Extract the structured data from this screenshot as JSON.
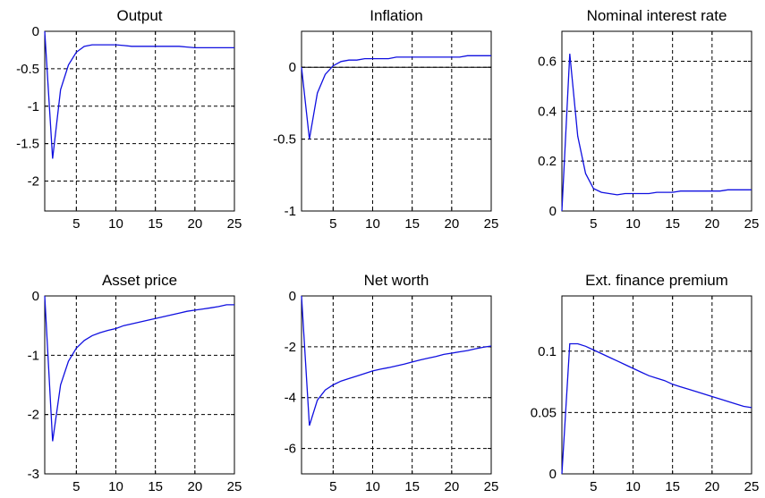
{
  "colors": {
    "line": "#1010e0",
    "axis": "#000000",
    "grid": "#000000",
    "background": "#ffffff"
  },
  "chart_data": [
    {
      "type": "line",
      "title": "Output",
      "grid": true,
      "xlim": [
        1,
        25
      ],
      "ylim": [
        -2.4,
        0
      ],
      "x_ticks": [
        5,
        10,
        15,
        20,
        25
      ],
      "x_tick_labels": [
        "5",
        "10",
        "15",
        "20",
        "25"
      ],
      "y_ticks": [
        -2,
        -1.5,
        -1,
        -0.5,
        0
      ],
      "y_tick_labels": [
        "-2",
        "-1.5",
        "-1",
        "-0.5",
        "0"
      ],
      "hline": null,
      "series": [
        {
          "x": [
            1,
            2,
            3,
            4,
            5,
            6,
            7,
            8,
            9,
            10,
            11,
            12,
            13,
            14,
            15,
            16,
            17,
            18,
            19,
            20,
            21,
            22,
            23,
            24,
            25
          ],
          "values": [
            0,
            -1.7,
            -0.78,
            -0.45,
            -0.28,
            -0.2,
            -0.18,
            -0.18,
            -0.18,
            -0.18,
            -0.19,
            -0.2,
            -0.2,
            -0.2,
            -0.2,
            -0.2,
            -0.2,
            -0.2,
            -0.21,
            -0.22,
            -0.22,
            -0.22,
            -0.22,
            -0.22,
            -0.22
          ]
        }
      ]
    },
    {
      "type": "line",
      "title": "Inflation",
      "grid": true,
      "xlim": [
        1,
        25
      ],
      "ylim": [
        -1,
        0.25
      ],
      "x_ticks": [
        5,
        10,
        15,
        20,
        25
      ],
      "x_tick_labels": [
        "5",
        "10",
        "15",
        "20",
        "25"
      ],
      "y_ticks": [
        -1,
        -0.5,
        0
      ],
      "y_tick_labels": [
        "-1",
        "-0.5",
        "0"
      ],
      "hline": 0,
      "series": [
        {
          "x": [
            1,
            2,
            3,
            4,
            5,
            6,
            7,
            8,
            9,
            10,
            11,
            12,
            13,
            14,
            15,
            16,
            17,
            18,
            19,
            20,
            21,
            22,
            23,
            24,
            25
          ],
          "values": [
            0,
            -0.5,
            -0.18,
            -0.05,
            0.01,
            0.04,
            0.05,
            0.05,
            0.06,
            0.06,
            0.06,
            0.06,
            0.07,
            0.07,
            0.07,
            0.07,
            0.07,
            0.07,
            0.07,
            0.07,
            0.07,
            0.08,
            0.08,
            0.08,
            0.08
          ]
        }
      ]
    },
    {
      "type": "line",
      "title": "Nominal interest rate",
      "grid": true,
      "xlim": [
        1,
        25
      ],
      "ylim": [
        0,
        0.72
      ],
      "x_ticks": [
        5,
        10,
        15,
        20,
        25
      ],
      "x_tick_labels": [
        "5",
        "10",
        "15",
        "20",
        "25"
      ],
      "y_ticks": [
        0,
        0.2,
        0.4,
        0.6
      ],
      "y_tick_labels": [
        "0",
        "0.2",
        "0.4",
        "0.6"
      ],
      "hline": null,
      "series": [
        {
          "x": [
            1,
            2,
            3,
            4,
            5,
            6,
            7,
            8,
            9,
            10,
            11,
            12,
            13,
            14,
            15,
            16,
            17,
            18,
            19,
            20,
            21,
            22,
            23,
            24,
            25
          ],
          "values": [
            0,
            0.63,
            0.3,
            0.15,
            0.09,
            0.075,
            0.07,
            0.065,
            0.07,
            0.07,
            0.07,
            0.07,
            0.075,
            0.075,
            0.075,
            0.08,
            0.08,
            0.08,
            0.08,
            0.08,
            0.08,
            0.085,
            0.085,
            0.085,
            0.085
          ]
        }
      ]
    },
    {
      "type": "line",
      "title": "Asset price",
      "grid": true,
      "xlim": [
        1,
        25
      ],
      "ylim": [
        -3,
        0
      ],
      "x_ticks": [
        5,
        10,
        15,
        20,
        25
      ],
      "x_tick_labels": [
        "5",
        "10",
        "15",
        "20",
        "25"
      ],
      "y_ticks": [
        -3,
        -2,
        -1,
        0
      ],
      "y_tick_labels": [
        "-3",
        "-2",
        "-1",
        "0"
      ],
      "hline": null,
      "series": [
        {
          "x": [
            1,
            2,
            3,
            4,
            5,
            6,
            7,
            8,
            9,
            10,
            11,
            12,
            13,
            14,
            15,
            16,
            17,
            18,
            19,
            20,
            21,
            22,
            23,
            24,
            25
          ],
          "values": [
            0,
            -2.45,
            -1.5,
            -1.1,
            -0.88,
            -0.75,
            -0.67,
            -0.62,
            -0.58,
            -0.55,
            -0.5,
            -0.47,
            -0.44,
            -0.41,
            -0.38,
            -0.35,
            -0.32,
            -0.29,
            -0.26,
            -0.24,
            -0.22,
            -0.2,
            -0.18,
            -0.15,
            -0.15
          ]
        }
      ]
    },
    {
      "type": "line",
      "title": "Net worth",
      "grid": true,
      "xlim": [
        1,
        25
      ],
      "ylim": [
        -7,
        0
      ],
      "x_ticks": [
        5,
        10,
        15,
        20,
        25
      ],
      "x_tick_labels": [
        "5",
        "10",
        "15",
        "20",
        "25"
      ],
      "y_ticks": [
        -6,
        -4,
        -2,
        0
      ],
      "y_tick_labels": [
        "-6",
        "-4",
        "-2",
        "0"
      ],
      "hline": null,
      "series": [
        {
          "x": [
            1,
            2,
            3,
            4,
            5,
            6,
            7,
            8,
            9,
            10,
            11,
            12,
            13,
            14,
            15,
            16,
            17,
            18,
            19,
            20,
            21,
            22,
            23,
            24,
            25
          ],
          "values": [
            0,
            -5.1,
            -4.1,
            -3.7,
            -3.5,
            -3.35,
            -3.25,
            -3.15,
            -3.05,
            -2.95,
            -2.88,
            -2.82,
            -2.75,
            -2.68,
            -2.6,
            -2.52,
            -2.45,
            -2.38,
            -2.3,
            -2.25,
            -2.2,
            -2.15,
            -2.08,
            -2.02,
            -1.97
          ]
        }
      ]
    },
    {
      "type": "line",
      "title": "Ext. finance premium",
      "grid": true,
      "xlim": [
        1,
        25
      ],
      "ylim": [
        0,
        0.145
      ],
      "x_ticks": [
        5,
        10,
        15,
        20,
        25
      ],
      "x_tick_labels": [
        "5",
        "10",
        "15",
        "20",
        "25"
      ],
      "y_ticks": [
        0,
        0.05,
        0.1
      ],
      "y_tick_labels": [
        "0",
        "0.05",
        "0.1"
      ],
      "hline": null,
      "series": [
        {
          "x": [
            1,
            2,
            3,
            4,
            5,
            6,
            7,
            8,
            9,
            10,
            11,
            12,
            13,
            14,
            15,
            16,
            17,
            18,
            19,
            20,
            21,
            22,
            23,
            24,
            25
          ],
          "values": [
            0,
            0.106,
            0.106,
            0.104,
            0.101,
            0.098,
            0.095,
            0.092,
            0.089,
            0.086,
            0.083,
            0.08,
            0.078,
            0.076,
            0.073,
            0.071,
            0.069,
            0.067,
            0.065,
            0.063,
            0.061,
            0.059,
            0.057,
            0.055,
            0.054
          ]
        }
      ]
    }
  ]
}
